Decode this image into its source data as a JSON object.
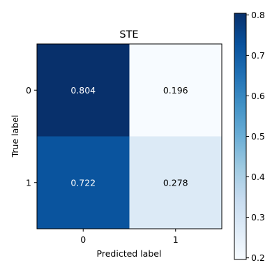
{
  "chart_data": {
    "type": "heatmap",
    "title": "STE",
    "xlabel": "Predicted label",
    "ylabel": "True label",
    "x_categories": [
      "0",
      "1"
    ],
    "y_categories": [
      "0",
      "1"
    ],
    "values": [
      [
        0.804,
        0.196
      ],
      [
        0.722,
        0.278
      ]
    ],
    "value_labels": [
      [
        "0.804",
        "0.196"
      ],
      [
        "0.722",
        "0.278"
      ]
    ],
    "colormap": "Blues",
    "color_range": [
      0.196,
      0.804
    ],
    "colorbar_ticks": [
      0.2,
      0.3,
      0.4,
      0.5,
      0.6,
      0.7,
      0.8
    ],
    "colorbar_tick_labels": [
      "0.2",
      "0.3",
      "0.4",
      "0.5",
      "0.6",
      "0.7",
      "0.8"
    ],
    "grid": false,
    "legend": "colorbar-right"
  }
}
